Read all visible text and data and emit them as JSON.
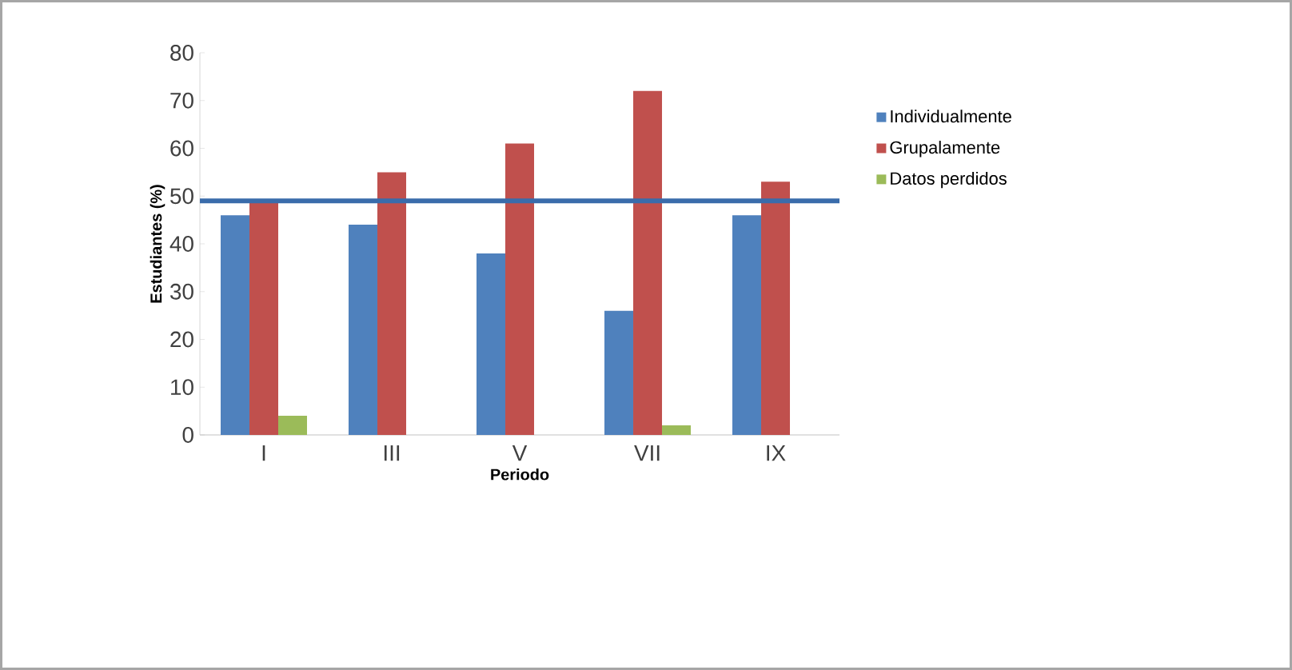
{
  "chart_data": {
    "type": "bar",
    "xlabel": "Periodo",
    "ylabel": "Estudiantes (%)",
    "categories": [
      "I",
      "III",
      "V",
      "VII",
      "IX"
    ],
    "series": [
      {
        "name": "Individualmente",
        "color": "#4f81bd",
        "values": [
          46,
          44,
          38,
          26,
          46
        ]
      },
      {
        "name": "Grupalamente",
        "color": "#c0504d",
        "values": [
          49,
          55,
          61,
          72,
          53
        ]
      },
      {
        "name": "Datos perdidos",
        "color": "#9bbb59",
        "values": [
          4,
          null,
          null,
          2,
          null
        ]
      }
    ],
    "ylim": [
      0,
      80
    ],
    "yticks": [
      0,
      10,
      20,
      30,
      40,
      50,
      60,
      70,
      80
    ],
    "ref_lines": [
      {
        "axis": "y",
        "value": 49,
        "color": "#3a6cab"
      }
    ],
    "legend": "right",
    "grid": false
  }
}
